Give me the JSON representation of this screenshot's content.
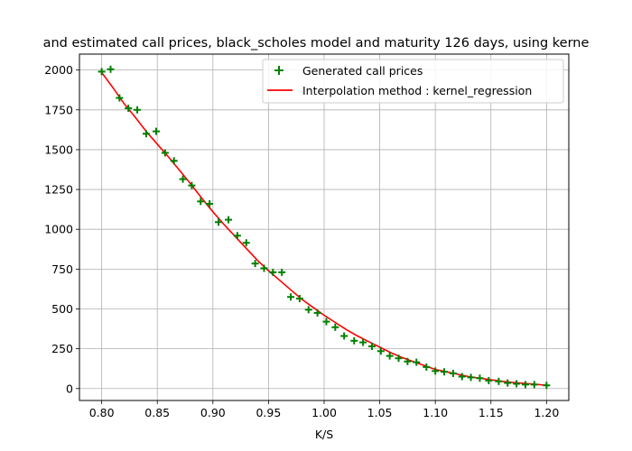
{
  "chart_data": {
    "type": "scatter",
    "title": "and estimated call prices, black_scholes model and maturity 126 days, using kerne",
    "xlabel": "K/S",
    "ylabel": "",
    "xlim": [
      0.78,
      1.22
    ],
    "ylim": [
      -75,
      2100
    ],
    "grid": true,
    "legend_position": "top-right",
    "xticks": [
      0.8,
      0.85,
      0.9,
      0.95,
      1.0,
      1.05,
      1.1,
      1.15,
      1.2
    ],
    "xtick_labels": [
      "0.80",
      "0.85",
      "0.90",
      "0.95",
      "1.00",
      "1.05",
      "1.10",
      "1.15",
      "1.20"
    ],
    "yticks": [
      0,
      250,
      500,
      750,
      1000,
      1250,
      1500,
      1750,
      2000
    ],
    "ytick_labels": [
      "0",
      "250",
      "500",
      "750",
      "1000",
      "1250",
      "1500",
      "1750",
      "2000"
    ],
    "series": [
      {
        "name": "Generated call prices",
        "kind": "scatter",
        "marker": "plus",
        "color": "#008000",
        "x": [
          0.8,
          0.808,
          0.816,
          0.824,
          0.832,
          0.84,
          0.849,
          0.857,
          0.865,
          0.873,
          0.881,
          0.889,
          0.897,
          0.905,
          0.914,
          0.922,
          0.93,
          0.938,
          0.946,
          0.954,
          0.962,
          0.97,
          0.978,
          0.986,
          0.994,
          1.002,
          1.01,
          1.018,
          1.027,
          1.035,
          1.043,
          1.051,
          1.059,
          1.067,
          1.075,
          1.083,
          1.092,
          1.1,
          1.108,
          1.116,
          1.124,
          1.132,
          1.14,
          1.148,
          1.157,
          1.165,
          1.173,
          1.181,
          1.189,
          1.2
        ],
        "y": [
          1990,
          2005,
          1825,
          1760,
          1750,
          1600,
          1615,
          1480,
          1430,
          1315,
          1275,
          1175,
          1160,
          1045,
          1060,
          960,
          915,
          785,
          755,
          730,
          730,
          575,
          565,
          495,
          475,
          420,
          385,
          330,
          300,
          290,
          265,
          235,
          205,
          190,
          170,
          165,
          135,
          110,
          105,
          95,
          75,
          70,
          65,
          50,
          45,
          35,
          30,
          25,
          25,
          20
        ]
      },
      {
        "name": "Interpolation method : kernel_regression",
        "kind": "line",
        "color": "#ff0000",
        "x": [
          0.8,
          0.81,
          0.82,
          0.83,
          0.84,
          0.85,
          0.86,
          0.87,
          0.88,
          0.89,
          0.9,
          0.91,
          0.92,
          0.93,
          0.94,
          0.95,
          0.96,
          0.97,
          0.98,
          0.99,
          1.0,
          1.01,
          1.02,
          1.03,
          1.04,
          1.05,
          1.06,
          1.07,
          1.08,
          1.09,
          1.1,
          1.11,
          1.12,
          1.13,
          1.14,
          1.15,
          1.16,
          1.17,
          1.18,
          1.19,
          1.2
        ],
        "y": [
          1985,
          1890,
          1790,
          1705,
          1615,
          1535,
          1455,
          1370,
          1285,
          1195,
          1110,
          1030,
          955,
          880,
          805,
          740,
          680,
          620,
          560,
          510,
          460,
          415,
          370,
          330,
          295,
          260,
          225,
          195,
          170,
          145,
          120,
          105,
          90,
          75,
          65,
          55,
          45,
          38,
          32,
          27,
          20
        ]
      }
    ]
  }
}
